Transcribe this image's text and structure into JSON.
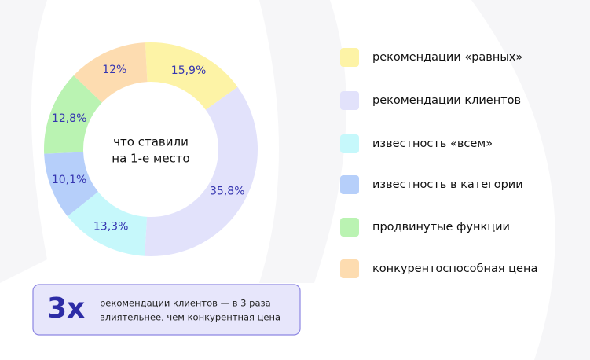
{
  "chart_data": {
    "type": "donut",
    "center_label": [
      "что ставили",
      "на 1-е место"
    ],
    "categories": [
      "рекомендации «равных»",
      "рекомендации клиентов",
      "известность «всем»",
      "известность в категории",
      "продвинутые функции",
      "конкурентоспособная цена"
    ],
    "values": [
      15.9,
      35.8,
      13.3,
      10.1,
      12.8,
      12
    ],
    "value_labels": [
      "15,9%",
      "35,8%",
      "13,3%",
      "10,1%",
      "12,8%",
      "12%"
    ],
    "colors": [
      "#fdf3a6",
      "#e2e2fb",
      "#c6f8fb",
      "#b6cffa",
      "#baf3b2",
      "#fddcb0"
    ],
    "legend": "right"
  },
  "callout": {
    "figure": "3x",
    "lines": [
      "рекомендации клиентов — в 3 раза",
      "влиятельнее, чем конкурентная цена"
    ]
  }
}
